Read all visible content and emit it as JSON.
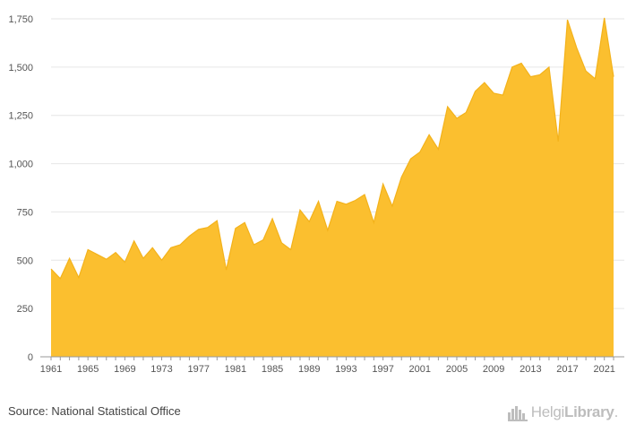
{
  "chart_data": {
    "type": "area",
    "title": "",
    "xlabel": "",
    "ylabel": "",
    "x": [
      1961,
      1962,
      1963,
      1964,
      1965,
      1966,
      1967,
      1968,
      1969,
      1970,
      1971,
      1972,
      1973,
      1974,
      1975,
      1976,
      1977,
      1978,
      1979,
      1980,
      1981,
      1982,
      1983,
      1984,
      1985,
      1986,
      1987,
      1988,
      1989,
      1990,
      1991,
      1992,
      1993,
      1994,
      1995,
      1996,
      1997,
      1998,
      1999,
      2000,
      2001,
      2002,
      2003,
      2004,
      2005,
      2006,
      2007,
      2008,
      2009,
      2010,
      2011,
      2012,
      2013,
      2014,
      2015,
      2016,
      2017,
      2018,
      2019,
      2020,
      2021,
      2022
    ],
    "values": [
      455,
      405,
      510,
      410,
      555,
      530,
      505,
      540,
      490,
      600,
      510,
      565,
      500,
      565,
      580,
      625,
      660,
      670,
      705,
      450,
      665,
      695,
      580,
      605,
      715,
      590,
      555,
      760,
      700,
      805,
      655,
      805,
      790,
      810,
      840,
      695,
      895,
      780,
      930,
      1025,
      1060,
      1150,
      1075,
      1295,
      1235,
      1265,
      1375,
      1420,
      1365,
      1355,
      1500,
      1520,
      1450,
      1460,
      1500,
      1115,
      1745,
      1600,
      1480,
      1440,
      1755,
      1450
    ],
    "xticks": [
      "1961",
      "1965",
      "1969",
      "1973",
      "1977",
      "1981",
      "1985",
      "1989",
      "1993",
      "1997",
      "2001",
      "2005",
      "2009",
      "2013",
      "2017",
      "2021"
    ],
    "yticks": [
      "0",
      "250",
      "500",
      "750",
      "1,000",
      "1,250",
      "1,500",
      "1,750"
    ],
    "xlim": [
      1961,
      2022
    ],
    "ylim": [
      0,
      1750
    ],
    "grid": "horizontal",
    "legend": "none",
    "colors": {
      "fill": "#fbbf2f",
      "stroke": "#f3b21b",
      "grid": "#e6e6e6",
      "axis": "#999999"
    }
  },
  "footer": {
    "source": "Source: National Statistical Office",
    "logo_light": "Helgi",
    "logo_bold": "Library",
    "logo_dot": "."
  }
}
